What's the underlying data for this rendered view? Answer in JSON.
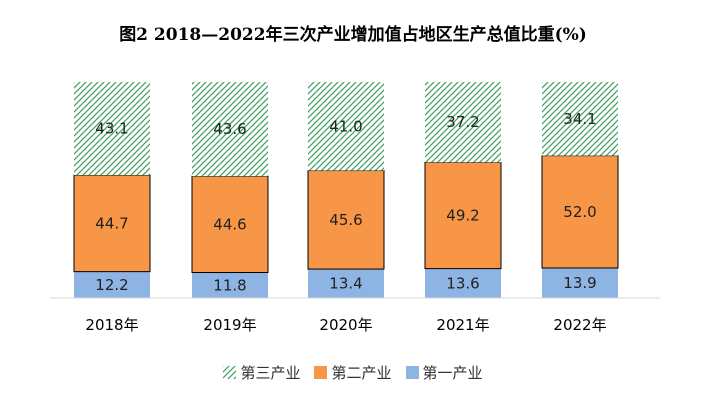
{
  "chart_data": {
    "type": "bar",
    "stacked": true,
    "title": "图2  2018—2022年三次产业增加值占地区生产总值比重(%)",
    "categories": [
      "2018年",
      "2019年",
      "2020年",
      "2021年",
      "2022年"
    ],
    "series": [
      {
        "name": "第一产业",
        "values": [
          12.2,
          11.8,
          13.4,
          13.6,
          13.9
        ],
        "color": "#8eb4e3",
        "pattern": "solid"
      },
      {
        "name": "第二产业",
        "values": [
          44.7,
          44.6,
          45.6,
          49.2,
          52.0
        ],
        "color": "#f79646",
        "pattern": "solid"
      },
      {
        "name": "第三产业",
        "values": [
          43.1,
          43.6,
          41.0,
          37.2,
          34.1
        ],
        "color": "#3f9f5f",
        "pattern": "diagonal-hatch"
      }
    ],
    "legend": {
      "position": "bottom",
      "order": [
        "第三产业",
        "第二产业",
        "第一产业"
      ]
    },
    "ylim": [
      0,
      100
    ],
    "grid": false,
    "xlabel": "",
    "ylabel": ""
  }
}
